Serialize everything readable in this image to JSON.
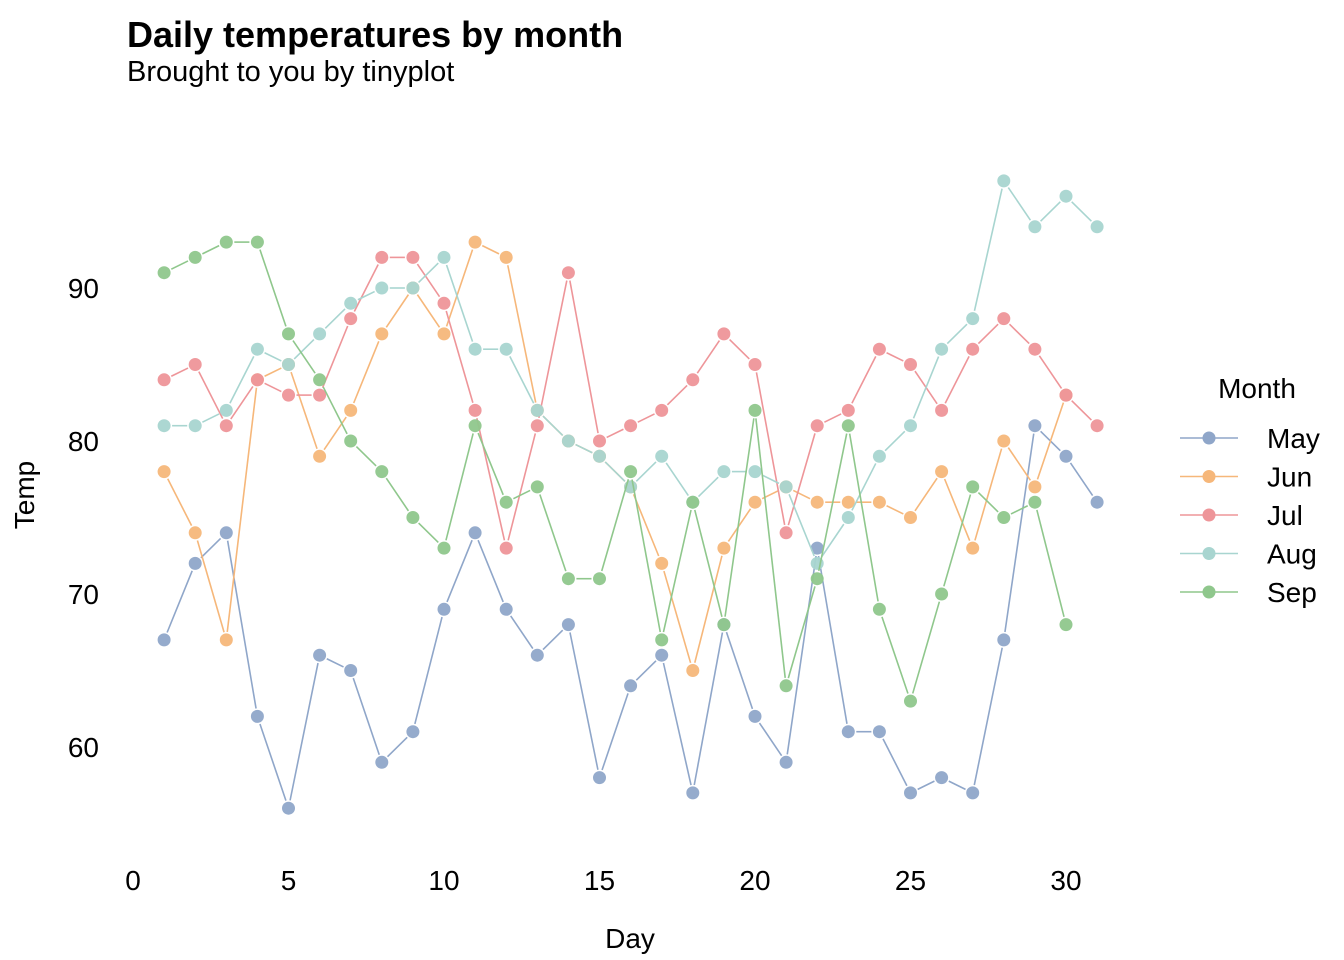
{
  "chart_data": {
    "type": "line",
    "title": "Daily temperatures by month",
    "subtitle": "Brought to you by tinyplot",
    "xlabel": "Day",
    "ylabel": "Temp",
    "xlim": [
      0,
      31
    ],
    "ylim": [
      56,
      97
    ],
    "x_ticks": [
      0,
      5,
      10,
      15,
      20,
      25,
      30
    ],
    "y_ticks": [
      60,
      70,
      80,
      90
    ],
    "grid": false,
    "legend_title": "Month",
    "legend_position": "right",
    "x": [
      1,
      2,
      3,
      4,
      5,
      6,
      7,
      8,
      9,
      10,
      11,
      12,
      13,
      14,
      15,
      16,
      17,
      18,
      19,
      20,
      21,
      22,
      23,
      24,
      25,
      26,
      27,
      28,
      29,
      30,
      31
    ],
    "series": [
      {
        "name": "May",
        "color": "#8FA6C9",
        "values": [
          67,
          72,
          74,
          62,
          56,
          66,
          65,
          59,
          61,
          69,
          74,
          69,
          66,
          68,
          58,
          64,
          66,
          57,
          68,
          62,
          59,
          73,
          61,
          61,
          57,
          58,
          57,
          67,
          81,
          79,
          76
        ]
      },
      {
        "name": "Jun",
        "color": "#F6B77A",
        "values": [
          78,
          74,
          67,
          84,
          85,
          79,
          82,
          87,
          90,
          87,
          93,
          92,
          82,
          80,
          79,
          77,
          72,
          65,
          73,
          76,
          77,
          76,
          76,
          76,
          75,
          78,
          73,
          80,
          77,
          83,
          null
        ]
      },
      {
        "name": "Jul",
        "color": "#EE9599",
        "values": [
          84,
          85,
          81,
          84,
          83,
          83,
          88,
          92,
          92,
          89,
          82,
          73,
          81,
          91,
          80,
          81,
          82,
          84,
          87,
          85,
          74,
          81,
          82,
          86,
          85,
          82,
          86,
          88,
          86,
          83,
          81
        ]
      },
      {
        "name": "Aug",
        "color": "#A8D5D0",
        "values": [
          81,
          81,
          82,
          86,
          85,
          87,
          89,
          90,
          90,
          92,
          86,
          86,
          82,
          80,
          79,
          77,
          79,
          76,
          78,
          78,
          77,
          72,
          75,
          79,
          81,
          86,
          88,
          97,
          94,
          96,
          94
        ]
      },
      {
        "name": "Sep",
        "color": "#8FC78C",
        "values": [
          91,
          92,
          93,
          93,
          87,
          84,
          80,
          78,
          75,
          73,
          81,
          76,
          77,
          71,
          71,
          78,
          67,
          76,
          68,
          82,
          64,
          71,
          81,
          69,
          63,
          70,
          77,
          75,
          76,
          68,
          null
        ]
      }
    ]
  }
}
